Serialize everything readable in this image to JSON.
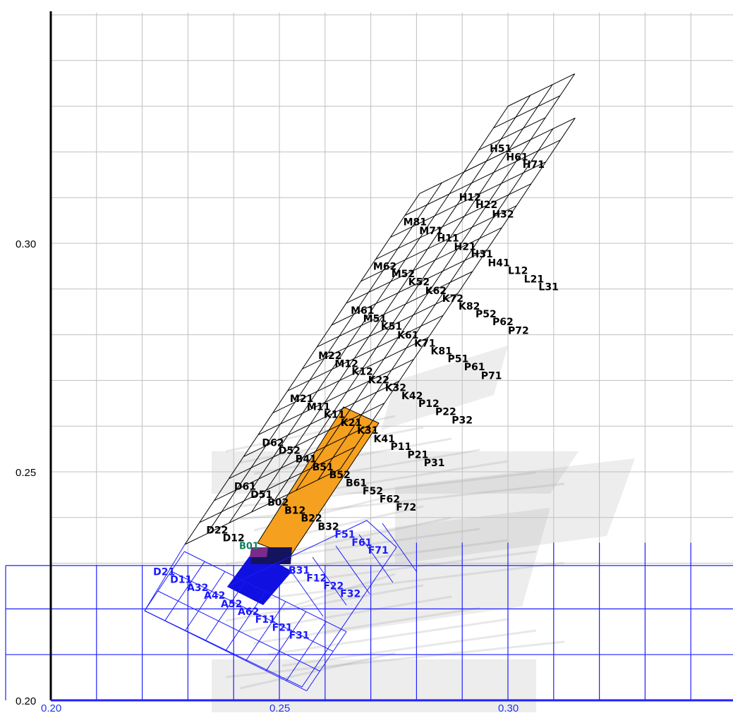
{
  "chart_data": {
    "type": "scatter",
    "title": "",
    "xlabel": "",
    "ylabel": "",
    "xlim": [
      0.2,
      0.3495
    ],
    "ylim": [
      0.2,
      0.3517
    ],
    "grid": true,
    "x_ticks": [
      "0.20",
      "0.25",
      "0.30"
    ],
    "y_ticks": [
      "0.20",
      "0.25",
      "0.30"
    ],
    "colors": {
      "grid_gray": "#c0c0c0",
      "grid_blue": "#2020ff",
      "axis_black": "#000000",
      "mesh_black": "#000000",
      "mesh_blue": "#1a1aff",
      "highlight_orange": "#f5a01f",
      "highlight_blue": "#1010e0",
      "highlight_navy": "#14145e",
      "highlight_purple": "#7a2a8a",
      "ghost_gray": "#9a9a9a"
    },
    "labels": [
      {
        "text": "H51",
        "x": 0.296,
        "y": 0.32,
        "color": "black"
      },
      {
        "text": "H61",
        "x": 0.2996,
        "y": 0.3181,
        "color": "black"
      },
      {
        "text": "H71",
        "x": 0.3032,
        "y": 0.3165,
        "color": "black"
      },
      {
        "text": "H12",
        "x": 0.2893,
        "y": 0.3093,
        "color": "black"
      },
      {
        "text": "H22",
        "x": 0.2929,
        "y": 0.3077,
        "color": "black"
      },
      {
        "text": "H32",
        "x": 0.2965,
        "y": 0.3056,
        "color": "black"
      },
      {
        "text": "M81",
        "x": 0.2771,
        "y": 0.3039,
        "color": "black"
      },
      {
        "text": "M71",
        "x": 0.2806,
        "y": 0.302,
        "color": "black"
      },
      {
        "text": "H11",
        "x": 0.2845,
        "y": 0.3004,
        "color": "black"
      },
      {
        "text": "H21",
        "x": 0.2882,
        "y": 0.2985,
        "color": "black"
      },
      {
        "text": "H31",
        "x": 0.2919,
        "y": 0.2969,
        "color": "black"
      },
      {
        "text": "H41",
        "x": 0.2956,
        "y": 0.295,
        "color": "black"
      },
      {
        "text": "L12",
        "x": 0.3,
        "y": 0.2933,
        "color": "black"
      },
      {
        "text": "L21",
        "x": 0.3035,
        "y": 0.2914,
        "color": "black"
      },
      {
        "text": "L31",
        "x": 0.3067,
        "y": 0.2897,
        "color": "black"
      },
      {
        "text": "M62",
        "x": 0.2705,
        "y": 0.2942,
        "color": "black"
      },
      {
        "text": "M52",
        "x": 0.2745,
        "y": 0.2926,
        "color": "black"
      },
      {
        "text": "K52",
        "x": 0.2782,
        "y": 0.2908,
        "color": "black"
      },
      {
        "text": "K62",
        "x": 0.2819,
        "y": 0.2889,
        "color": "black"
      },
      {
        "text": "K72",
        "x": 0.2856,
        "y": 0.2872,
        "color": "black"
      },
      {
        "text": "K82",
        "x": 0.2892,
        "y": 0.2855,
        "color": "black"
      },
      {
        "text": "P52",
        "x": 0.2929,
        "y": 0.2838,
        "color": "black"
      },
      {
        "text": "P62",
        "x": 0.2966,
        "y": 0.2821,
        "color": "black"
      },
      {
        "text": "P72",
        "x": 0.3,
        "y": 0.2802,
        "color": "black"
      },
      {
        "text": "M61",
        "x": 0.2656,
        "y": 0.2846,
        "color": "black"
      },
      {
        "text": "M51",
        "x": 0.2683,
        "y": 0.2828,
        "color": "black"
      },
      {
        "text": "K51",
        "x": 0.2722,
        "y": 0.2811,
        "color": "black"
      },
      {
        "text": "K61",
        "x": 0.2758,
        "y": 0.2792,
        "color": "black"
      },
      {
        "text": "K71",
        "x": 0.2795,
        "y": 0.2774,
        "color": "black"
      },
      {
        "text": "K81",
        "x": 0.2831,
        "y": 0.2757,
        "color": "black"
      },
      {
        "text": "P51",
        "x": 0.2868,
        "y": 0.274,
        "color": "black"
      },
      {
        "text": "P61",
        "x": 0.2904,
        "y": 0.2722,
        "color": "black"
      },
      {
        "text": "P71",
        "x": 0.2941,
        "y": 0.2703,
        "color": "black"
      },
      {
        "text": "M22",
        "x": 0.2585,
        "y": 0.2747,
        "color": "black"
      },
      {
        "text": "M12",
        "x": 0.2621,
        "y": 0.2729,
        "color": "black"
      },
      {
        "text": "K12",
        "x": 0.2658,
        "y": 0.2712,
        "color": "black"
      },
      {
        "text": "K22",
        "x": 0.2694,
        "y": 0.2694,
        "color": "black"
      },
      {
        "text": "K32",
        "x": 0.2731,
        "y": 0.2677,
        "color": "black"
      },
      {
        "text": "K42",
        "x": 0.2767,
        "y": 0.2659,
        "color": "black"
      },
      {
        "text": "P12",
        "x": 0.2804,
        "y": 0.2642,
        "color": "black"
      },
      {
        "text": "P22",
        "x": 0.2841,
        "y": 0.2624,
        "color": "black"
      },
      {
        "text": "P32",
        "x": 0.2877,
        "y": 0.2606,
        "color": "black"
      },
      {
        "text": "M21",
        "x": 0.2523,
        "y": 0.2653,
        "color": "black"
      },
      {
        "text": "M11",
        "x": 0.256,
        "y": 0.2635,
        "color": "black"
      },
      {
        "text": "K11",
        "x": 0.2597,
        "y": 0.2618,
        "color": "black"
      },
      {
        "text": "K21",
        "x": 0.2634,
        "y": 0.26,
        "color": "black"
      },
      {
        "text": "K31",
        "x": 0.267,
        "y": 0.2583,
        "color": "black"
      },
      {
        "text": "K41",
        "x": 0.2706,
        "y": 0.2565,
        "color": "black"
      },
      {
        "text": "P11",
        "x": 0.2743,
        "y": 0.2548,
        "color": "black"
      },
      {
        "text": "P21",
        "x": 0.278,
        "y": 0.253,
        "color": "black"
      },
      {
        "text": "P31",
        "x": 0.2816,
        "y": 0.2512,
        "color": "black"
      },
      {
        "text": "D62",
        "x": 0.2462,
        "y": 0.2556,
        "color": "black"
      },
      {
        "text": "D52",
        "x": 0.2498,
        "y": 0.2539,
        "color": "black"
      },
      {
        "text": "B41",
        "x": 0.2535,
        "y": 0.2521,
        "color": "black"
      },
      {
        "text": "B51",
        "x": 0.2572,
        "y": 0.2503,
        "color": "black"
      },
      {
        "text": "B52",
        "x": 0.2609,
        "y": 0.2486,
        "color": "black"
      },
      {
        "text": "B61",
        "x": 0.2645,
        "y": 0.2468,
        "color": "black"
      },
      {
        "text": "F52",
        "x": 0.2682,
        "y": 0.2451,
        "color": "black"
      },
      {
        "text": "F62",
        "x": 0.2719,
        "y": 0.2433,
        "color": "black"
      },
      {
        "text": "F72",
        "x": 0.2755,
        "y": 0.2415,
        "color": "black"
      },
      {
        "text": "D61",
        "x": 0.2401,
        "y": 0.2461,
        "color": "black"
      },
      {
        "text": "D51",
        "x": 0.2437,
        "y": 0.2443,
        "color": "black"
      },
      {
        "text": "B02",
        "x": 0.2474,
        "y": 0.2426,
        "color": "black"
      },
      {
        "text": "B12",
        "x": 0.2511,
        "y": 0.2408,
        "color": "black"
      },
      {
        "text": "B22",
        "x": 0.2547,
        "y": 0.2391,
        "color": "black"
      },
      {
        "text": "B32",
        "x": 0.2584,
        "y": 0.2373,
        "color": "black"
      },
      {
        "text": "D22",
        "x": 0.234,
        "y": 0.2365,
        "color": "black"
      },
      {
        "text": "D12",
        "x": 0.2376,
        "y": 0.2348,
        "color": "black"
      },
      {
        "text": "B01",
        "x": 0.2412,
        "y": 0.2331,
        "color": "green"
      },
      {
        "text": "F51",
        "x": 0.2621,
        "y": 0.2356,
        "color": "blue"
      },
      {
        "text": "F61",
        "x": 0.2658,
        "y": 0.2338,
        "color": "blue"
      },
      {
        "text": "F71",
        "x": 0.2694,
        "y": 0.2321,
        "color": "blue"
      },
      {
        "text": "B31",
        "x": 0.252,
        "y": 0.2277,
        "color": "blue"
      },
      {
        "text": "F12",
        "x": 0.2559,
        "y": 0.226,
        "color": "blue"
      },
      {
        "text": "F22",
        "x": 0.2596,
        "y": 0.2243,
        "color": "blue"
      },
      {
        "text": "F32",
        "x": 0.2633,
        "y": 0.2226,
        "color": "blue"
      },
      {
        "text": "D21",
        "x": 0.2224,
        "y": 0.2274,
        "color": "blue"
      },
      {
        "text": "D11",
        "x": 0.2261,
        "y": 0.2257,
        "color": "blue"
      },
      {
        "text": "A32",
        "x": 0.2298,
        "y": 0.2239,
        "color": "blue"
      },
      {
        "text": "A42",
        "x": 0.2335,
        "y": 0.2222,
        "color": "blue"
      },
      {
        "text": "A52",
        "x": 0.2372,
        "y": 0.2204,
        "color": "blue"
      },
      {
        "text": "A62",
        "x": 0.2409,
        "y": 0.2187,
        "color": "blue"
      },
      {
        "text": "F11",
        "x": 0.2447,
        "y": 0.217,
        "color": "blue"
      },
      {
        "text": "F21",
        "x": 0.2484,
        "y": 0.2152,
        "color": "blue"
      },
      {
        "text": "F31",
        "x": 0.2521,
        "y": 0.2135,
        "color": "blue"
      }
    ]
  }
}
